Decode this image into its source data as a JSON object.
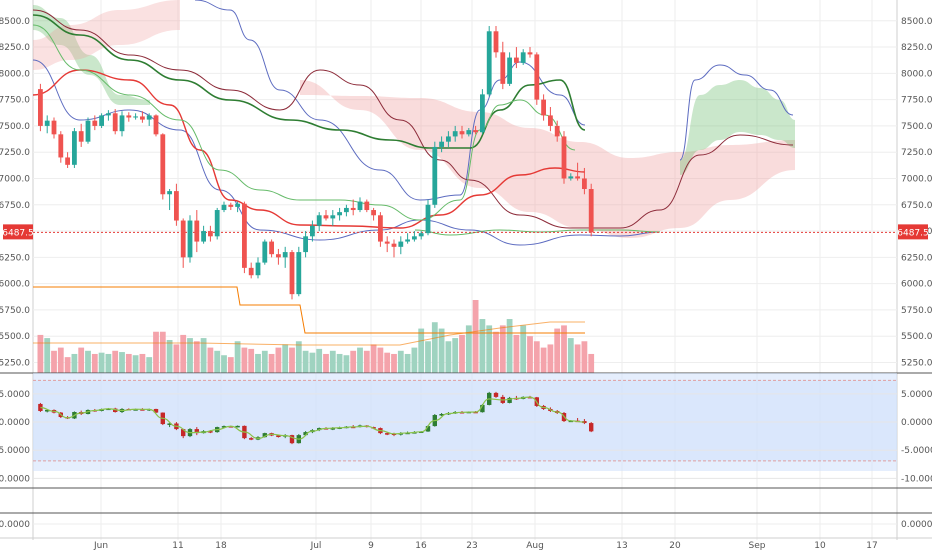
{
  "colors": {
    "up": "#26a69a",
    "down": "#ef5350",
    "cloud_bull": "#66bb6a",
    "cloud_bear": "#ef9a9a",
    "kijun": "#8d2c3a",
    "tenkan": "#3f51b5",
    "ema": "#e53935",
    "sma_green": "#2e7d32",
    "bb_upper": "#5c6bc0",
    "volume_up": "#9fd3c0",
    "volume_down": "#f4a3ab",
    "orange": "#f57c00",
    "osc_band": "#cfe0fb",
    "price_tag": "#e53935"
  },
  "last_price": "6487.5",
  "x_axis": {
    "ticks": [
      "Jun",
      "11",
      "18",
      "Jul",
      "9",
      "16",
      "23",
      "Aug",
      "13",
      "20",
      "Sep",
      "10",
      "17"
    ]
  },
  "right_axis": {
    "ticks": [
      "8500.0",
      "8250.0",
      "8000.0",
      "7750.0",
      "7500.0",
      "7250.0",
      "7000.0",
      "6750.0",
      "6500.0",
      "6250.0",
      "6000.0",
      "5750.0",
      "5500.0",
      "5250.0"
    ]
  },
  "left_axis": {
    "ticks": [
      "8500.0",
      "8250.0",
      "8000.0",
      "7750.0",
      "7500.0",
      "7250.0",
      "7000.0",
      "6750.0",
      "6250.0",
      "6000.0",
      "5750.0",
      "5500.0",
      "5250.0"
    ]
  },
  "oscillator": {
    "ticks": [
      "5.0000",
      "0.0000",
      "-5.0000",
      "-10.0000"
    ]
  },
  "bottom_panel": {
    "ticks": [
      "0.0000"
    ]
  },
  "chart_data": {
    "type": "candlestick",
    "ylim": [
      5150,
      8650
    ],
    "candles": [
      [
        7850,
        7900,
        7450,
        7500
      ],
      [
        7500,
        7600,
        7430,
        7550
      ],
      [
        7550,
        7580,
        7380,
        7420
      ],
      [
        7420,
        7450,
        7150,
        7200
      ],
      [
        7200,
        7250,
        7100,
        7130
      ],
      [
        7130,
        7480,
        7100,
        7450
      ],
      [
        7450,
        7520,
        7300,
        7350
      ],
      [
        7350,
        7580,
        7330,
        7550
      ],
      [
        7550,
        7600,
        7460,
        7500
      ],
      [
        7500,
        7620,
        7480,
        7600
      ],
      [
        7600,
        7650,
        7550,
        7620
      ],
      [
        7620,
        7660,
        7420,
        7450
      ],
      [
        7450,
        7640,
        7400,
        7600
      ],
      [
        7600,
        7630,
        7540,
        7580
      ],
      [
        7580,
        7620,
        7560,
        7590
      ],
      [
        7590,
        7640,
        7530,
        7560
      ],
      [
        7560,
        7620,
        7500,
        7600
      ],
      [
        7600,
        7610,
        7400,
        7420
      ],
      [
        7420,
        7430,
        6800,
        6850
      ],
      [
        6850,
        6900,
        6700,
        6880
      ],
      [
        6880,
        6950,
        6550,
        6600
      ],
      [
        6600,
        6620,
        6150,
        6250
      ],
      [
        6250,
        6650,
        6200,
        6600
      ],
      [
        6600,
        6700,
        6300,
        6400
      ],
      [
        6400,
        6550,
        6380,
        6500
      ],
      [
        6500,
        6550,
        6400,
        6450
      ],
      [
        6450,
        6720,
        6420,
        6700
      ],
      [
        6700,
        6780,
        6680,
        6750
      ],
      [
        6750,
        6770,
        6700,
        6730
      ],
      [
        6730,
        6780,
        6680,
        6760
      ],
      [
        6760,
        6780,
        6100,
        6150
      ],
      [
        6150,
        6200,
        6050,
        6080
      ],
      [
        6080,
        6250,
        6050,
        6200
      ],
      [
        6200,
        6420,
        6180,
        6400
      ],
      [
        6400,
        6420,
        6250,
        6280
      ],
      [
        6280,
        6330,
        6180,
        6250
      ],
      [
        6250,
        6350,
        6150,
        6300
      ],
      [
        6300,
        6320,
        5850,
        5900
      ],
      [
        5900,
        6350,
        5880,
        6300
      ],
      [
        6300,
        6500,
        6250,
        6450
      ],
      [
        6450,
        6600,
        6400,
        6550
      ],
      [
        6550,
        6680,
        6500,
        6650
      ],
      [
        6650,
        6700,
        6600,
        6620
      ],
      [
        6620,
        6700,
        6550,
        6650
      ],
      [
        6650,
        6720,
        6600,
        6680
      ],
      [
        6680,
        6750,
        6640,
        6720
      ],
      [
        6720,
        6800,
        6650,
        6700
      ],
      [
        6700,
        6820,
        6680,
        6780
      ],
      [
        6780,
        6800,
        6680,
        6700
      ],
      [
        6700,
        6720,
        6600,
        6650
      ],
      [
        6650,
        6680,
        6350,
        6400
      ],
      [
        6400,
        6450,
        6300,
        6380
      ],
      [
        6380,
        6420,
        6250,
        6350
      ],
      [
        6350,
        6450,
        6280,
        6400
      ],
      [
        6400,
        6480,
        6380,
        6420
      ],
      [
        6420,
        6500,
        6400,
        6450
      ],
      [
        6450,
        6500,
        6420,
        6480
      ],
      [
        6480,
        6800,
        6460,
        6750
      ],
      [
        6750,
        7350,
        6720,
        7300
      ],
      [
        7300,
        7400,
        7250,
        7350
      ],
      [
        7350,
        7450,
        7300,
        7400
      ],
      [
        7400,
        7500,
        7350,
        7450
      ],
      [
        7450,
        7500,
        7380,
        7420
      ],
      [
        7420,
        7480,
        7400,
        7460
      ],
      [
        7460,
        7500,
        7420,
        7440
      ],
      [
        7440,
        7850,
        7420,
        7800
      ],
      [
        7800,
        8450,
        7780,
        8400
      ],
      [
        8400,
        8450,
        8150,
        8200
      ],
      [
        8200,
        8300,
        7850,
        7900
      ],
      [
        7900,
        8200,
        7880,
        8150
      ],
      [
        8150,
        8250,
        8050,
        8100
      ],
      [
        8100,
        8230,
        8080,
        8200
      ],
      [
        8200,
        8250,
        8150,
        8180
      ],
      [
        8180,
        8200,
        7700,
        7750
      ],
      [
        7750,
        7800,
        7550,
        7600
      ],
      [
        7600,
        7680,
        7450,
        7500
      ],
      [
        7500,
        7550,
        7350,
        7400
      ],
      [
        7400,
        7450,
        6950,
        7000
      ],
      [
        7000,
        7050,
        6980,
        7020
      ],
      [
        7020,
        7150,
        6980,
        7000
      ],
      [
        7000,
        7100,
        6850,
        6900
      ],
      [
        6900,
        6950,
        6450,
        6487.5
      ]
    ],
    "volume": [
      60,
      55,
      35,
      40,
      25,
      30,
      40,
      35,
      30,
      32,
      30,
      35,
      33,
      30,
      28,
      30,
      25,
      65,
      65,
      52,
      45,
      60,
      55,
      50,
      55,
      40,
      35,
      28,
      25,
      50,
      40,
      38,
      30,
      35,
      30,
      40,
      45,
      40,
      50,
      35,
      32,
      38,
      30,
      35,
      30,
      28,
      35,
      40,
      35,
      45,
      40,
      32,
      30,
      35,
      30,
      40,
      70,
      50,
      80,
      70,
      50,
      55,
      60,
      75,
      115,
      85,
      75,
      65,
      75,
      85,
      60,
      75,
      58,
      50,
      40,
      45,
      70,
      75,
      55,
      45,
      50,
      30
    ],
    "oscillator": {
      "ylim": [
        -11,
        8
      ],
      "band": [
        7.4,
        -6.9
      ]
    }
  }
}
